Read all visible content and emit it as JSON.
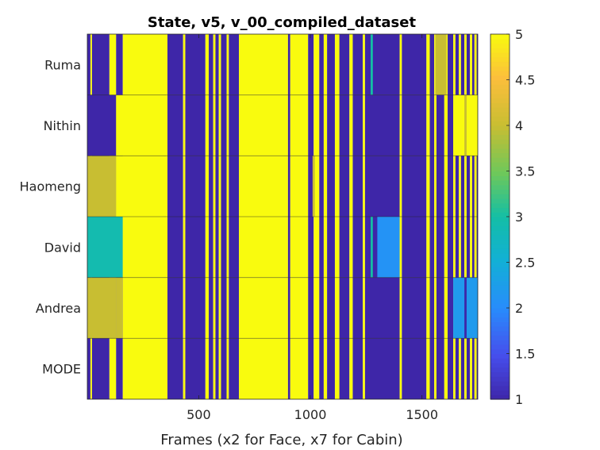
{
  "chart_data": {
    "type": "heatmap",
    "title": "State, v5, v_00_compiled_dataset",
    "xlabel": "Frames (x2 for Face, x7 for Cabin)",
    "ylabel": "",
    "xlim": [
      1,
      1750
    ],
    "x_ticks": [
      "500",
      "1000",
      "1500"
    ],
    "x_tick_values": [
      500,
      1000,
      1500
    ],
    "rows": [
      "Ruma",
      "Nithin",
      "Haomeng",
      "David",
      "Andrea",
      "MODE"
    ],
    "colorbar": {
      "range": [
        1,
        5
      ],
      "tick_labels": [
        "1",
        "1.5",
        "2",
        "2.5",
        "3",
        "3.5",
        "4",
        "4.5",
        "5"
      ],
      "tick_values": [
        1,
        1.5,
        2,
        2.5,
        3,
        3.5,
        4,
        4.5,
        5
      ],
      "colormap": "parula"
    },
    "base_segments": [
      {
        "x0": 1,
        "x1": 15,
        "v": 1
      },
      {
        "x0": 15,
        "x1": 22,
        "v": 5
      },
      {
        "x0": 22,
        "x1": 100,
        "v": 1
      },
      {
        "x0": 100,
        "x1": 130,
        "v": 5
      },
      {
        "x0": 130,
        "x1": 160,
        "v": 1
      },
      {
        "x0": 160,
        "x1": 360,
        "v": 5
      },
      {
        "x0": 360,
        "x1": 430,
        "v": 1
      },
      {
        "x0": 430,
        "x1": 440,
        "v": 5
      },
      {
        "x0": 440,
        "x1": 530,
        "v": 1
      },
      {
        "x0": 530,
        "x1": 545,
        "v": 5
      },
      {
        "x0": 545,
        "x1": 565,
        "v": 1
      },
      {
        "x0": 565,
        "x1": 575,
        "v": 5
      },
      {
        "x0": 575,
        "x1": 590,
        "v": 1
      },
      {
        "x0": 590,
        "x1": 600,
        "v": 5
      },
      {
        "x0": 600,
        "x1": 625,
        "v": 1
      },
      {
        "x0": 625,
        "x1": 635,
        "v": 5
      },
      {
        "x0": 635,
        "x1": 680,
        "v": 1
      },
      {
        "x0": 680,
        "x1": 900,
        "v": 5
      },
      {
        "x0": 900,
        "x1": 910,
        "v": 1
      },
      {
        "x0": 910,
        "x1": 990,
        "v": 5
      },
      {
        "x0": 990,
        "x1": 1015,
        "v": 1
      },
      {
        "x0": 1015,
        "x1": 1040,
        "v": 5
      },
      {
        "x0": 1040,
        "x1": 1060,
        "v": 1
      },
      {
        "x0": 1060,
        "x1": 1075,
        "v": 5
      },
      {
        "x0": 1075,
        "x1": 1110,
        "v": 1
      },
      {
        "x0": 1110,
        "x1": 1130,
        "v": 5
      },
      {
        "x0": 1130,
        "x1": 1175,
        "v": 1
      },
      {
        "x0": 1175,
        "x1": 1190,
        "v": 5
      },
      {
        "x0": 1190,
        "x1": 1235,
        "v": 1
      },
      {
        "x0": 1235,
        "x1": 1245,
        "v": 5
      },
      {
        "x0": 1245,
        "x1": 1400,
        "v": 1
      },
      {
        "x0": 1400,
        "x1": 1410,
        "v": 5
      },
      {
        "x0": 1410,
        "x1": 1520,
        "v": 1
      },
      {
        "x0": 1520,
        "x1": 1535,
        "v": 5
      },
      {
        "x0": 1535,
        "x1": 1555,
        "v": 1
      },
      {
        "x0": 1555,
        "x1": 1565,
        "v": 5
      },
      {
        "x0": 1565,
        "x1": 1600,
        "v": 1
      },
      {
        "x0": 1600,
        "x1": 1615,
        "v": 5
      },
      {
        "x0": 1615,
        "x1": 1640,
        "v": 1
      },
      {
        "x0": 1640,
        "x1": 1650,
        "v": 5
      },
      {
        "x0": 1650,
        "x1": 1665,
        "v": 1
      },
      {
        "x0": 1665,
        "x1": 1675,
        "v": 5
      },
      {
        "x0": 1675,
        "x1": 1690,
        "v": 1
      },
      {
        "x0": 1690,
        "x1": 1700,
        "v": 5
      },
      {
        "x0": 1700,
        "x1": 1715,
        "v": 1
      },
      {
        "x0": 1715,
        "x1": 1725,
        "v": 5
      },
      {
        "x0": 1725,
        "x1": 1735,
        "v": 1
      },
      {
        "x0": 1735,
        "x1": 1745,
        "v": 5
      },
      {
        "x0": 1745,
        "x1": 1750,
        "v": 1
      }
    ],
    "row_overrides": {
      "Ruma": [
        {
          "x0": 1560,
          "x1": 1610,
          "v": 4
        },
        {
          "x0": 1270,
          "x1": 1280,
          "v": 3
        }
      ],
      "Nithin": [
        {
          "x0": 1,
          "x1": 130,
          "v": 1
        },
        {
          "x0": 130,
          "x1": 360,
          "v": 5
        },
        {
          "x0": 1640,
          "x1": 1750,
          "v": 5
        },
        {
          "x0": 1690,
          "x1": 1700,
          "v": 4
        }
      ],
      "Haomeng": [
        {
          "x0": 1,
          "x1": 130,
          "v": 4
        },
        {
          "x0": 130,
          "x1": 360,
          "v": 5
        },
        {
          "x0": 1010,
          "x1": 1020,
          "v": 4
        }
      ],
      "David": [
        {
          "x0": 1,
          "x1": 160,
          "v": 2.9
        },
        {
          "x0": 160,
          "x1": 360,
          "v": 5
        },
        {
          "x0": 1300,
          "x1": 1400,
          "v": 2.1
        },
        {
          "x0": 1270,
          "x1": 1280,
          "v": 3
        }
      ],
      "Andrea": [
        {
          "x0": 1,
          "x1": 130,
          "v": 4
        },
        {
          "x0": 130,
          "x1": 160,
          "v": 4
        },
        {
          "x0": 1640,
          "x1": 1750,
          "v": 2.2
        },
        {
          "x0": 1690,
          "x1": 1700,
          "v": 1
        }
      ],
      "MODE": []
    }
  }
}
